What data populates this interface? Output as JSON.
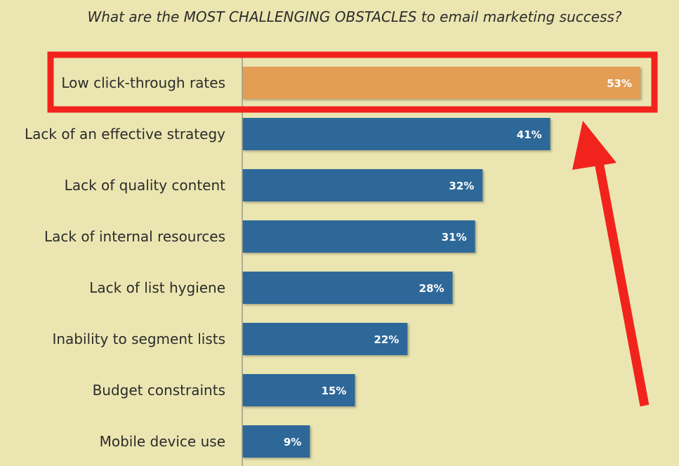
{
  "chart_data": {
    "type": "bar",
    "orientation": "horizontal",
    "title": "What are the MOST CHALLENGING OBSTACLES to email marketing success?",
    "categories": [
      "Low click-through rates",
      "Lack of an effective strategy",
      "Lack of quality content",
      "Lack of internal resources",
      "Lack of list hygiene",
      "Inability to segment lists",
      "Budget constraints",
      "Mobile device use"
    ],
    "values": [
      53,
      41,
      32,
      31,
      28,
      22,
      15,
      9
    ],
    "value_labels": [
      "53%",
      "41%",
      "32%",
      "31%",
      "28%",
      "22%",
      "15%",
      "9%"
    ],
    "unit": "%",
    "xlim": [
      0,
      53
    ],
    "highlight_index": 0,
    "colors": {
      "bar": "#2d6799",
      "highlight_bar": "#e39d55",
      "background": "#ebe6b1",
      "annotation": "#f2231d"
    },
    "annotations": [
      {
        "type": "box",
        "target": "Low click-through rates",
        "color": "#f2231d"
      },
      {
        "type": "arrow",
        "target": "Low click-through rates",
        "color": "#f2231d",
        "direction": "up"
      }
    ]
  }
}
